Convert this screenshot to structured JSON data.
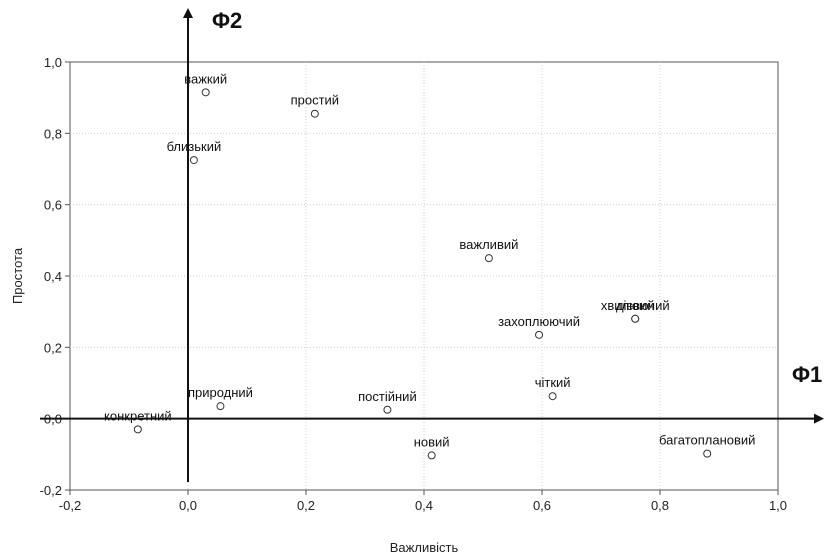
{
  "chart_data": {
    "type": "scatter",
    "title": "",
    "xlabel": "Важливість",
    "ylabel": "Простота",
    "xlim": [
      -0.2,
      1.0
    ],
    "ylim": [
      -0.2,
      1.0
    ],
    "x_ticks": [
      "-0,2",
      "0,0",
      "0,2",
      "0,4",
      "0,6",
      "0,8",
      "1,0"
    ],
    "y_ticks": [
      "-0,2",
      "0,0",
      "0,2",
      "0,4",
      "0,6",
      "0,8",
      "1,0"
    ],
    "grid": true,
    "factor_axes": {
      "x_name": "Φ1",
      "y_name": "Φ2"
    },
    "points": [
      {
        "label": "важкий",
        "x": 0.03,
        "y": 0.915
      },
      {
        "label": "простий",
        "x": 0.215,
        "y": 0.855
      },
      {
        "label": "близький",
        "x": 0.01,
        "y": 0.725
      },
      {
        "label": "важливий",
        "x": 0.51,
        "y": 0.45
      },
      {
        "label": "хвилюючий",
        "x": 0.758,
        "y": 0.28
      },
      {
        "label": "дієвий",
        "x": 0.758,
        "y": 0.28
      },
      {
        "label": "захоплюючий",
        "x": 0.595,
        "y": 0.235
      },
      {
        "label": "чіткий",
        "x": 0.618,
        "y": 0.063
      },
      {
        "label": "природний",
        "x": 0.055,
        "y": 0.035
      },
      {
        "label": "постійний",
        "x": 0.338,
        "y": 0.025
      },
      {
        "label": "конкретний",
        "x": -0.085,
        "y": -0.03
      },
      {
        "label": "новий",
        "x": 0.413,
        "y": -0.103
      },
      {
        "label": "багатоплановий",
        "x": 0.88,
        "y": -0.098
      }
    ]
  }
}
